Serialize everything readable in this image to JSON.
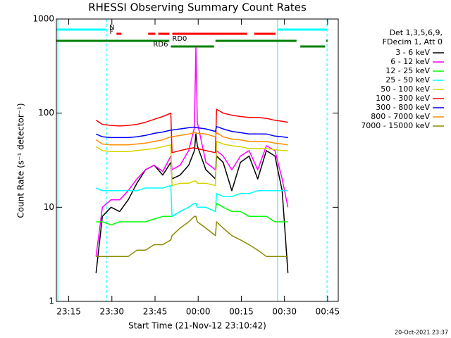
{
  "chart_data": {
    "type": "line",
    "title": "RHESSI Observing Summary Count Rates",
    "xlabel": "Start Time (21-Nov-12 23:10:42)",
    "ylabel": "Count Rate (s⁻¹ detector⁻¹)",
    "legend_header": [
      "Det 1,3,5,6,9,",
      "FDecim 1, Att 0"
    ],
    "timestamp": "20-Oct-2021 23:37",
    "log_y": true,
    "xlim": [
      0,
      98
    ],
    "ylim": [
      1,
      1000
    ],
    "yticks": [
      1,
      10,
      100,
      1000
    ],
    "xticks": [
      {
        "value": 4.3,
        "label": "23:15"
      },
      {
        "value": 19.3,
        "label": "23:30"
      },
      {
        "value": 34.3,
        "label": "23:45"
      },
      {
        "value": 49.3,
        "label": "00:00"
      },
      {
        "value": 64.3,
        "label": "00:15"
      },
      {
        "value": 79.3,
        "label": "00:30"
      },
      {
        "value": 94.3,
        "label": "00:45"
      }
    ],
    "x": [
      13.8,
      16,
      19,
      22,
      25,
      28,
      31,
      34,
      37,
      39.8,
      40.2,
      43,
      46,
      48,
      48.5,
      49,
      52,
      55.3,
      55.7,
      58,
      61,
      64,
      67,
      70,
      73,
      76,
      78.5,
      80.5
    ],
    "series": [
      {
        "name": "3 - 6 keV",
        "color": "#000000",
        "values": [
          2,
          8,
          10,
          9,
          12,
          18,
          25,
          28,
          22,
          30,
          20,
          22,
          28,
          40,
          60,
          45,
          25,
          20,
          35,
          30,
          15,
          30,
          35,
          20,
          40,
          35,
          15,
          2
        ]
      },
      {
        "name": "6 - 12 keV",
        "color": "#ff00ff",
        "values": [
          3,
          10,
          12,
          12,
          15,
          20,
          25,
          28,
          24,
          35,
          25,
          28,
          40,
          70,
          500,
          80,
          30,
          25,
          40,
          35,
          25,
          35,
          40,
          25,
          45,
          40,
          20,
          10
        ]
      },
      {
        "name": "12 - 25 keV",
        "color": "#00ff00",
        "values": [
          7,
          7,
          6.5,
          7,
          7,
          7,
          7,
          7.5,
          8,
          8,
          8,
          9,
          10,
          11,
          11,
          10,
          10,
          9,
          11,
          10,
          9,
          9,
          8,
          8,
          8,
          7,
          7,
          7
        ]
      },
      {
        "name": "25 - 50 keV",
        "color": "#00ffff",
        "values": [
          16,
          15,
          15,
          15,
          15,
          15,
          16,
          16,
          16,
          17,
          8,
          9,
          10,
          11,
          11,
          10,
          10,
          9,
          14,
          13,
          13,
          14,
          14,
          15,
          15,
          15,
          15,
          15
        ]
      },
      {
        "name": "50 - 100 keV",
        "color": "#d4d400",
        "values": [
          44,
          40,
          39,
          39,
          39,
          40,
          41,
          42,
          44,
          46,
          17,
          18,
          18,
          19,
          19,
          18,
          18,
          17,
          50,
          47,
          45,
          44,
          42,
          42,
          42,
          41,
          40,
          40
        ]
      },
      {
        "name": "100 - 300 keV",
        "color": "#ff0000",
        "values": [
          84,
          76,
          74,
          73,
          74,
          76,
          80,
          86,
          92,
          100,
          38,
          40,
          42,
          43,
          42,
          42,
          40,
          38,
          110,
          100,
          95,
          92,
          90,
          90,
          88,
          84,
          82,
          80
        ]
      },
      {
        "name": "300 - 800 keV",
        "color": "#0000ff",
        "values": [
          60,
          56,
          55,
          55,
          55,
          56,
          58,
          61,
          63,
          66,
          66,
          68,
          70,
          71,
          70,
          70,
          68,
          64,
          72,
          68,
          64,
          62,
          60,
          60,
          60,
          57,
          56,
          55
        ]
      },
      {
        "name": "800 - 7000 keV",
        "color": "#ff8c00",
        "values": [
          52,
          47,
          46,
          46,
          46,
          47,
          48,
          50,
          52,
          56,
          56,
          58,
          60,
          62,
          62,
          61,
          60,
          56,
          62,
          56,
          53,
          52,
          50,
          50,
          50,
          48,
          47,
          46
        ]
      },
      {
        "name": "7000 - 15000 keV",
        "color": "#8b8b00",
        "values": [
          3,
          3,
          3,
          3,
          3,
          3.5,
          3.5,
          4,
          4,
          4.5,
          5,
          6,
          7,
          8,
          8,
          7,
          6,
          5,
          7,
          6,
          5,
          4.5,
          4,
          3.5,
          3,
          3,
          3,
          3
        ]
      }
    ],
    "markers": [
      {
        "x": 0.5,
        "style": "solid",
        "color": "#00ffff"
      },
      {
        "x": 17.4,
        "style": "dashed",
        "color": "#00ffff"
      },
      {
        "x": 76.9,
        "style": "solid",
        "color": "#00ffff"
      },
      {
        "x": 94.1,
        "style": "dashed",
        "color": "#00ffff"
      }
    ],
    "flags": [
      {
        "label": "N",
        "color": "#00ffff",
        "segments": [
          [
            0,
            17.4
          ],
          [
            76.9,
            94.1
          ]
        ]
      },
      {
        "label": "F",
        "color": "#ff0000",
        "segments": [
          [
            20.9,
            22.6
          ],
          [
            31.9,
            34.4
          ],
          [
            35.4,
            39.3
          ],
          [
            40.3,
            66.3
          ],
          [
            68.8,
            76.2
          ]
        ]
      },
      {
        "label": "RD0",
        "color": "#008000",
        "segments": [
          [
            0,
            39.3
          ],
          [
            55.3,
            83.5
          ],
          [
            93.8,
            94.3
          ]
        ]
      },
      {
        "label": "RD6",
        "color": "#008000",
        "segments": [
          [
            39.8,
            54.8
          ],
          [
            84.8,
            93.4
          ]
        ]
      }
    ]
  }
}
